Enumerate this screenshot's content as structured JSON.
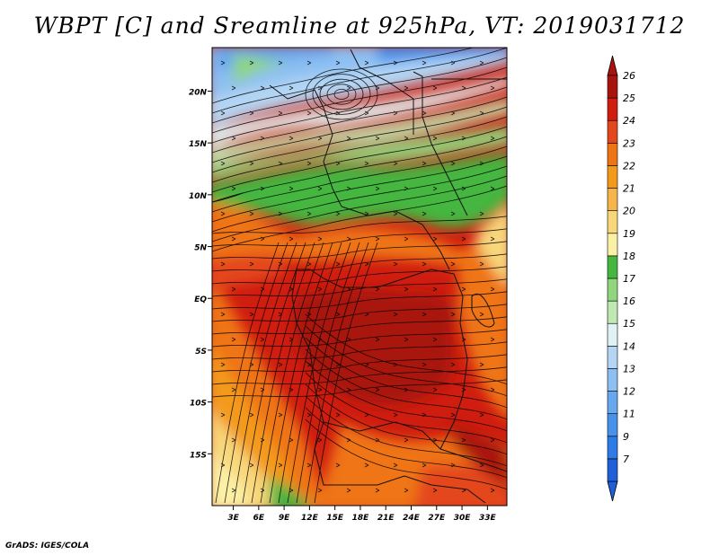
{
  "title": "WBPT [C] and Sreamline at 925hPa, VT: 2019031712",
  "credit": "GrADS: IGES/COLA",
  "map": {
    "lat_labels": [
      {
        "text": "20N",
        "lat": 20
      },
      {
        "text": "15N",
        "lat": 15
      },
      {
        "text": "10N",
        "lat": 10
      },
      {
        "text": "5N",
        "lat": 5
      },
      {
        "text": "EQ",
        "lat": 0
      },
      {
        "text": "5S",
        "lat": -5
      },
      {
        "text": "10S",
        "lat": -10
      },
      {
        "text": "15S",
        "lat": -15
      }
    ],
    "lon_labels": [
      {
        "text": "3E",
        "lon": 3
      },
      {
        "text": "6E",
        "lon": 6
      },
      {
        "text": "9E",
        "lon": 9
      },
      {
        "text": "12E",
        "lon": 12
      },
      {
        "text": "15E",
        "lon": 15
      },
      {
        "text": "18E",
        "lon": 18
      },
      {
        "text": "21E",
        "lon": 21
      },
      {
        "text": "24E",
        "lon": 24
      },
      {
        "text": "27E",
        "lon": 27
      },
      {
        "text": "30E",
        "lon": 30
      },
      {
        "text": "33E",
        "lon": 33
      }
    ],
    "lon_range": [
      0.5,
      35.3
    ],
    "lat_range": [
      -20,
      24.2
    ]
  },
  "colorbar": {
    "levels": [
      {
        "label": "7",
        "color": "#1f5fd8"
      },
      {
        "label": "9",
        "color": "#2e7ae6"
      },
      {
        "label": "11",
        "color": "#4892ec"
      },
      {
        "label": "12",
        "color": "#67a8ef"
      },
      {
        "label": "13",
        "color": "#8dbff2"
      },
      {
        "label": "14",
        "color": "#b4d6f4"
      },
      {
        "label": "15",
        "color": "#e0f2f3"
      },
      {
        "label": "16",
        "color": "#bfe8b2"
      },
      {
        "label": "17",
        "color": "#8fd67c"
      },
      {
        "label": "18",
        "color": "#45b63f"
      },
      {
        "label": "19",
        "color": "#fbf0a6"
      },
      {
        "label": "20",
        "color": "#f8d77b"
      },
      {
        "label": "21",
        "color": "#f5b54a"
      },
      {
        "label": "22",
        "color": "#f39a1c"
      },
      {
        "label": "23",
        "color": "#ef7514"
      },
      {
        "label": "24",
        "color": "#e4471d"
      },
      {
        "label": "25",
        "color": "#cf1d10"
      },
      {
        "label": "26",
        "color": "#a8140d"
      }
    ],
    "below_color": "#1f5fd8",
    "above_color": "#a8140d"
  }
}
